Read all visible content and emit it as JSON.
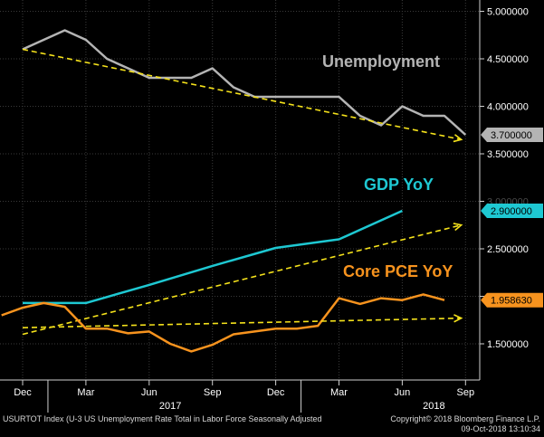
{
  "chart_data": {
    "type": "line",
    "x_axis": {
      "month_labels": [
        "Dec",
        "Mar",
        "Jun",
        "Sep",
        "Dec",
        "Mar",
        "Jun",
        "Sep"
      ],
      "year_labels": [
        "2017",
        "2018"
      ]
    },
    "y_axis": {
      "tick_labels": [
        "1.500000",
        "2.000000",
        "2.500000",
        "3.000000",
        "3.500000",
        "4.000000",
        "4.500000",
        "5.000000"
      ],
      "ylim": [
        1.1,
        5.1
      ],
      "label_colors": [
        "#ffffff",
        "#4a4a4a",
        "#ffffff",
        "#4a4a4a",
        "#ffffff",
        "#ffffff",
        "#ffffff",
        "#ffffff"
      ]
    },
    "grid": true,
    "series": [
      {
        "name": "Unemployment",
        "color": "#b4b4b4",
        "last_value_label": "3.700000",
        "months": [
          0,
          1,
          2,
          3,
          4,
          5,
          6,
          7,
          8,
          9,
          10,
          11,
          12,
          13,
          14,
          15,
          16,
          17,
          18,
          19,
          20,
          21
        ],
        "values": [
          4.6,
          4.7,
          4.8,
          4.7,
          4.5,
          4.4,
          4.3,
          4.3,
          4.3,
          4.4,
          4.2,
          4.1,
          4.1,
          4.1,
          4.1,
          4.1,
          3.9,
          3.8,
          4.0,
          3.9,
          3.9,
          3.7
        ],
        "trend": {
          "from": [
            0,
            4.6
          ],
          "to": [
            20.8,
            3.65
          ]
        }
      },
      {
        "name": "GDP YoY",
        "color": "#1ec8d2",
        "last_value_label": "2.900000",
        "months": [
          0,
          3,
          6,
          9,
          12,
          15,
          18
        ],
        "values": [
          1.93,
          1.93,
          2.12,
          2.32,
          2.51,
          2.6,
          2.9
        ],
        "trend": {
          "from": [
            0,
            1.6
          ],
          "to": [
            20.8,
            2.75
          ]
        }
      },
      {
        "name": "Core PCE YoY",
        "color": "#f7931e",
        "last_value_label": "1.958630",
        "months": [
          -1,
          0,
          1,
          2,
          3,
          4,
          5,
          6,
          7,
          8,
          9,
          10,
          11,
          12,
          13,
          14,
          15,
          16,
          17,
          18,
          19,
          20
        ],
        "values": [
          1.8,
          1.88,
          1.93,
          1.89,
          1.66,
          1.66,
          1.61,
          1.63,
          1.5,
          1.42,
          1.49,
          1.6,
          1.63,
          1.66,
          1.66,
          1.69,
          1.98,
          1.92,
          1.98,
          1.96,
          2.02,
          1.96
        ],
        "trend": {
          "from": [
            0,
            1.67
          ],
          "to": [
            20.8,
            1.77
          ]
        }
      }
    ]
  },
  "footer": {
    "source": "USURTOT Index (U-3 US Unemployment Rate Total in Labor Force Seasonally Adjusted",
    "copyright": "Copyright© 2018 Bloomberg Finance L.P.",
    "timestamp": "09-Oct-2018 13:10:34"
  }
}
